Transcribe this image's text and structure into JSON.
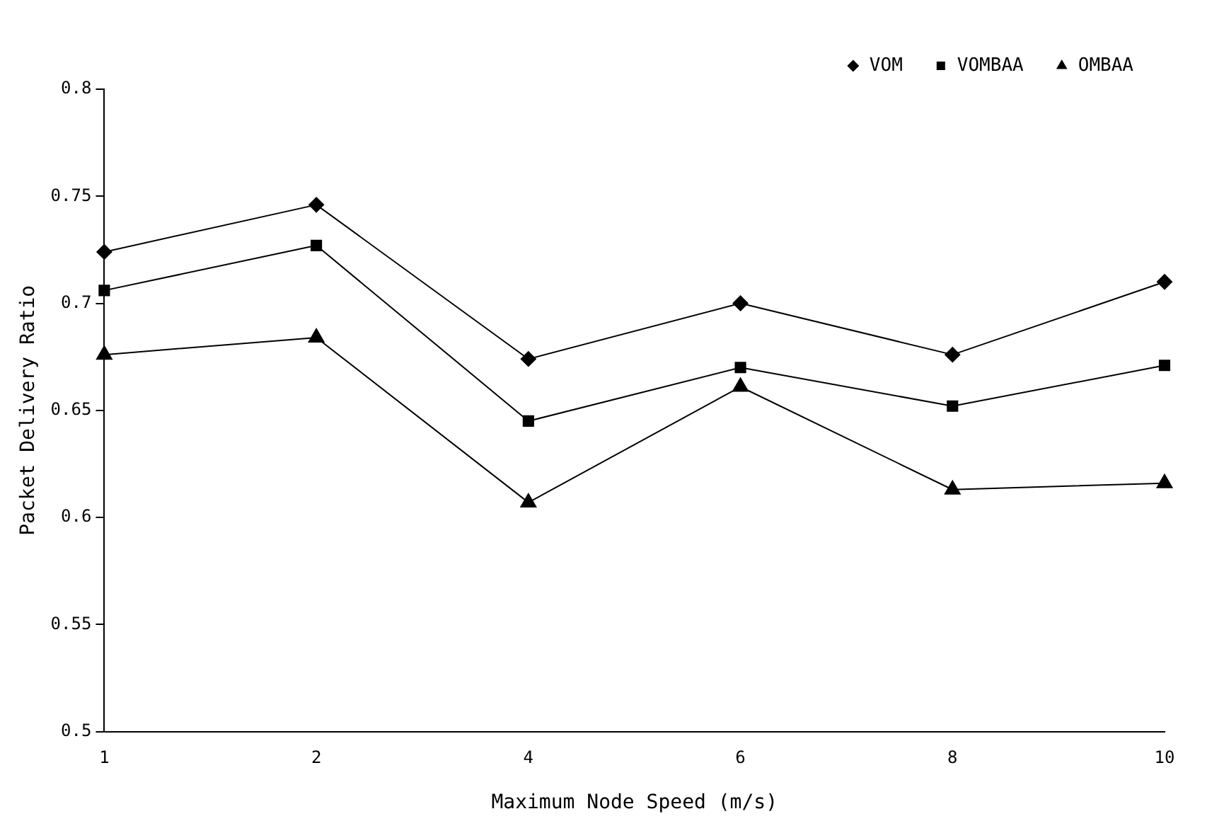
{
  "chart_data": {
    "type": "line",
    "xlabel": "Maximum Node Speed (m/s)",
    "ylabel": "Packet Delivery Ratio",
    "categories": [
      "1",
      "2",
      "4",
      "6",
      "8",
      "10"
    ],
    "series": [
      {
        "name": "VOM",
        "color": "#000000",
        "marker": "diamond",
        "values": [
          0.724,
          0.746,
          0.674,
          0.7,
          0.676,
          0.71
        ]
      },
      {
        "name": "VOMBAA",
        "color": "#000000",
        "marker": "square",
        "values": [
          0.706,
          0.727,
          0.645,
          0.67,
          0.652,
          0.671
        ]
      },
      {
        "name": "OMBAA",
        "color": "#000000",
        "marker": "triangle",
        "values": [
          0.676,
          0.684,
          0.607,
          0.661,
          0.613,
          0.616
        ]
      }
    ],
    "ylim": [
      0.5,
      0.8
    ],
    "yticks": [
      {
        "value": 0.5,
        "label": "0.5"
      },
      {
        "value": 0.55,
        "label": "0.55"
      },
      {
        "value": 0.6,
        "label": "0.6"
      },
      {
        "value": 0.65,
        "label": "0.65"
      },
      {
        "value": 0.7,
        "label": "0.7"
      },
      {
        "value": 0.75,
        "label": "0.75"
      },
      {
        "value": 0.8,
        "label": "0.8"
      }
    ],
    "grid": false,
    "legend": "top right",
    "line_style": "solid"
  }
}
